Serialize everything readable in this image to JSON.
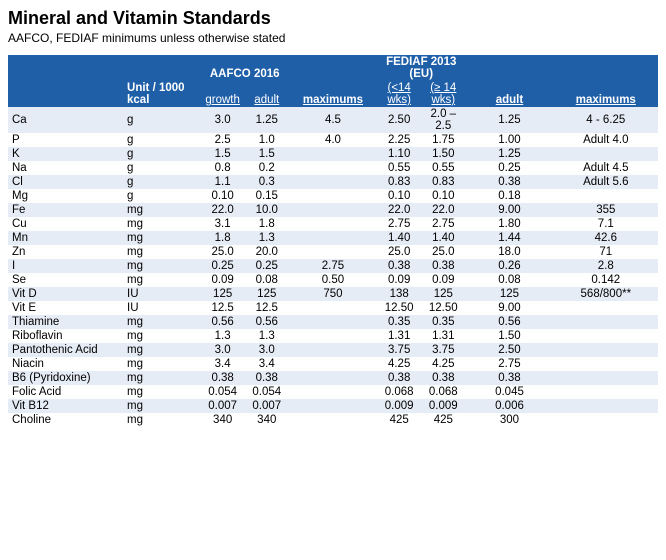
{
  "title": "Mineral and Vitamin Standards",
  "subtitle": "AAFCO, FEDIAF minimums unless otherwise stated",
  "header": {
    "group_aafco": "AAFCO 2016",
    "group_fediaf": "FEDIAF 2013 (EU)",
    "unit_label": "Unit / 1000 kcal",
    "cols": [
      "growth",
      "adult",
      "maximums",
      "(<14 wks)",
      "(≥ 14 wks)",
      "adult",
      "maximums"
    ]
  },
  "rows": [
    {
      "n": "Ca",
      "u": "g",
      "v": [
        "3.0",
        "1.25",
        "4.5",
        "2.50",
        "2.0 – 2.5",
        "1.25",
        "4 - 6.25"
      ]
    },
    {
      "n": "P",
      "u": "g",
      "v": [
        "2.5",
        "1.0",
        "4.0",
        "2.25",
        "1.75",
        "1.00",
        "Adult 4.0"
      ]
    },
    {
      "n": "K",
      "u": "g",
      "v": [
        "1.5",
        "1.5",
        "",
        "1.10",
        "1.50",
        "1.25",
        ""
      ]
    },
    {
      "n": "Na",
      "u": "g",
      "v": [
        "0.8",
        "0.2",
        "",
        "0.55",
        "0.55",
        "0.25",
        "Adult 4.5"
      ]
    },
    {
      "n": "Cl",
      "u": "g",
      "v": [
        "1.1",
        "0.3",
        "",
        "0.83",
        "0.83",
        "0.38",
        "Adult 5.6"
      ]
    },
    {
      "n": "Mg",
      "u": "g",
      "v": [
        "0.10",
        "0.15",
        "",
        "0.10",
        "0.10",
        "0.18",
        ""
      ]
    },
    {
      "n": "Fe",
      "u": "mg",
      "v": [
        "22.0",
        "10.0",
        "",
        "22.0",
        "22.0",
        "9.00",
        "355"
      ]
    },
    {
      "n": "Cu",
      "u": "mg",
      "v": [
        "3.1",
        "1.8",
        "",
        "2.75",
        "2.75",
        "1.80",
        "7.1"
      ]
    },
    {
      "n": "Mn",
      "u": "mg",
      "v": [
        "1.8",
        "1.3",
        "",
        "1.40",
        "1.40",
        "1.44",
        "42.6"
      ]
    },
    {
      "n": "Zn",
      "u": "mg",
      "v": [
        "25.0",
        "20.0",
        "",
        "25.0",
        "25.0",
        "18.0",
        "71"
      ]
    },
    {
      "n": "I",
      "u": "mg",
      "v": [
        "0.25",
        "0.25",
        "2.75",
        "0.38",
        "0.38",
        "0.26",
        "2.8"
      ]
    },
    {
      "n": "Se",
      "u": "mg",
      "v": [
        "0.09",
        "0.08",
        "0.50",
        "0.09",
        "0.09",
        "0.08",
        "0.142"
      ]
    },
    {
      "n": "Vit D",
      "u": "IU",
      "v": [
        "125",
        "125",
        "750",
        "138",
        "125",
        "125",
        "568/800**"
      ]
    },
    {
      "n": "Vit E",
      "u": "IU",
      "v": [
        "12.5",
        "12.5",
        "",
        "12.50",
        "12.50",
        "9.00",
        ""
      ]
    },
    {
      "n": "Thiamine",
      "u": "mg",
      "v": [
        "0.56",
        "0.56",
        "",
        "0.35",
        "0.35",
        "0.56",
        ""
      ]
    },
    {
      "n": "Riboflavin",
      "u": "mg",
      "v": [
        "1.3",
        "1.3",
        "",
        "1.31",
        "1.31",
        "1.50",
        ""
      ]
    },
    {
      "n": "Pantothenic Acid",
      "u": "mg",
      "v": [
        "3.0",
        "3.0",
        "",
        "3.75",
        "3.75",
        "2.50",
        ""
      ]
    },
    {
      "n": "Niacin",
      "u": "mg",
      "v": [
        "3.4",
        "3.4",
        "",
        "4.25",
        "4.25",
        "2.75",
        ""
      ]
    },
    {
      "n": "B6 (Pyridoxine)",
      "u": "mg",
      "v": [
        "0.38",
        "0.38",
        "",
        "0.38",
        "0.38",
        "0.38",
        ""
      ]
    },
    {
      "n": "Folic Acid",
      "u": "mg",
      "v": [
        "0.054",
        "0.054",
        "",
        "0.068",
        "0.068",
        "0.045",
        ""
      ]
    },
    {
      "n": "Vit B12",
      "u": "mg",
      "v": [
        "0.007",
        "0.007",
        "",
        "0.009",
        "0.009",
        "0.006",
        ""
      ]
    },
    {
      "n": "Choline",
      "u": "mg",
      "v": [
        "340",
        "340",
        "",
        "425",
        "425",
        "300",
        ""
      ]
    }
  ],
  "style": {
    "header_bg": "#1f5fa8",
    "header_fg": "#ffffff",
    "row_even_bg": "#e6ecf5",
    "row_odd_bg": "#ffffff",
    "title_fontsize": 18,
    "body_fontsize": 12
  }
}
